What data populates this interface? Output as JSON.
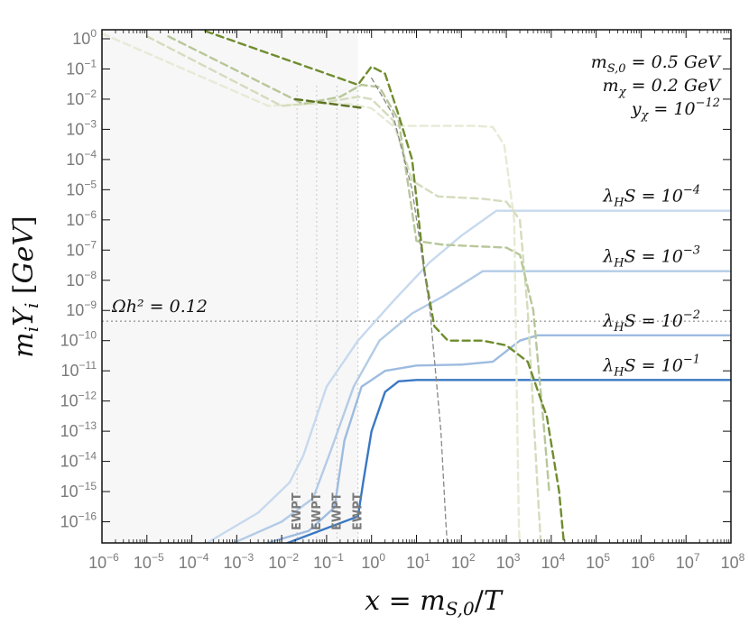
{
  "chart_data": {
    "type": "line",
    "title": "",
    "xlabel": "x = m_{S,0}/T",
    "ylabel": "m_i Y_i  [GeV]",
    "xscale": "log",
    "yscale": "log",
    "xlim": [
      1e-06,
      100000000.0
    ],
    "ylim": [
      1e-17,
      1
    ],
    "grid": false,
    "shaded_region_x": [
      1e-06,
      0.5
    ],
    "x_tick_labels": [
      "10^-6",
      "10^-5",
      "10^-4",
      "10^-3",
      "10^-2",
      "10^-1",
      "10^0",
      "10^1",
      "10^2",
      "10^3",
      "10^4",
      "10^5",
      "10^6",
      "10^7",
      "10^8"
    ],
    "y_tick_labels": [
      "10^0",
      "10^-1",
      "10^-2",
      "10^-3",
      "10^-4",
      "10^-5",
      "10^-6",
      "10^-7",
      "10^-8",
      "10^-9",
      "10^-10",
      "10^-11",
      "10^-12",
      "10^-13",
      "10^-14",
      "10^-15",
      "10^-16",
      "10^-17"
    ],
    "colors": {
      "blue_dark": "#3a78c2",
      "green_dark": "#6f8c2e",
      "grey_ref": "#888888"
    },
    "parameters": [
      {
        "lhs": "m_{S,0}",
        "rhs": "0.5 GeV"
      },
      {
        "lhs": "m_χ",
        "rhs": "0.2 GeV"
      },
      {
        "lhs": "y_χ",
        "rhs": "10^-12"
      }
    ],
    "relic_line": {
      "label": "Ωh² = 0.12",
      "y": 4.4e-10
    },
    "ewpt_markers": [
      {
        "label": "EWPT",
        "x": 0.022
      },
      {
        "label": "EWPT",
        "x": 0.06
      },
      {
        "label": "EWPT",
        "x": 0.17
      },
      {
        "label": "EWPT",
        "x": 0.5
      }
    ],
    "series_labels": [
      {
        "label": "λ_HS = 10^-4",
        "y": 2e-06
      },
      {
        "label": "λ_HS = 10^-3",
        "y": 2e-08
      },
      {
        "label": "λ_HS = 10^-2",
        "y": 1.5e-10
      },
      {
        "label": "λ_HS = 10^-1",
        "y": 5e-12
      }
    ],
    "series": [
      {
        "name": "λ_HS = 10^-4",
        "kind": "dark matter",
        "style": "solid",
        "color": "#c7d9ee",
        "points": [
          [
            0.0001,
            1e-17
          ],
          [
            0.003,
            2e-16
          ],
          [
            0.015,
            2e-15
          ],
          [
            0.03,
            1.5e-14
          ],
          [
            0.1,
            3e-12
          ],
          [
            0.5,
            1e-10
          ],
          [
            3,
            2e-09
          ],
          [
            20,
            4e-08
          ],
          [
            100,
            3e-07
          ],
          [
            600,
            2e-06
          ],
          [
            2000,
            2e-06
          ],
          [
            100000000.0,
            2e-06
          ]
        ]
      },
      {
        "name": "λ_HS = 10^-3",
        "kind": "dark matter",
        "style": "solid",
        "color": "#b3cbe6",
        "points": [
          [
            0.0003,
            1e-17
          ],
          [
            0.01,
            1e-16
          ],
          [
            0.05,
            6e-16
          ],
          [
            0.12,
            2e-14
          ],
          [
            0.4,
            3e-12
          ],
          [
            1.5,
            1e-10
          ],
          [
            8,
            8e-10
          ],
          [
            40,
            3e-09
          ],
          [
            300,
            2e-08
          ],
          [
            1000,
            2e-08
          ],
          [
            100000000.0,
            2e-08
          ]
        ]
      },
      {
        "name": "λ_HS = 10^-2",
        "kind": "dark matter",
        "style": "solid",
        "color": "#9dbbe0",
        "points": [
          [
            0.001,
            1e-17
          ],
          [
            0.04,
            5e-17
          ],
          [
            0.15,
            3e-16
          ],
          [
            0.25,
            5e-14
          ],
          [
            0.6,
            3e-12
          ],
          [
            2,
            1e-11
          ],
          [
            10,
            1.5e-11
          ],
          [
            100,
            1.6e-11
          ],
          [
            500,
            2e-11
          ],
          [
            2000,
            1e-10
          ],
          [
            5000,
            1.5e-10
          ],
          [
            100000000.0,
            1.5e-10
          ]
        ]
      },
      {
        "name": "λ_HS = 10^-1",
        "kind": "dark matter",
        "style": "solid",
        "color": "#3a78c2",
        "points": [
          [
            0.004,
            1e-17
          ],
          [
            0.5,
            1.5e-16
          ],
          [
            0.65,
            2e-15
          ],
          [
            1,
            1e-13
          ],
          [
            2,
            2e-12
          ],
          [
            4,
            4.5e-12
          ],
          [
            10,
            5e-12
          ],
          [
            100000000.0,
            5e-12
          ]
        ]
      },
      {
        "name": "λ_HS = 10^-4",
        "kind": "scalar",
        "style": "dashed",
        "color": "#e6ead6",
        "points": [
          [
            1e-06,
            1.5
          ],
          [
            0.005,
            0.006
          ],
          [
            0.05,
            0.007
          ],
          [
            0.3,
            0.007
          ],
          [
            1,
            0.005
          ],
          [
            3,
            0.0013
          ],
          [
            10,
            0.0013
          ],
          [
            200,
            0.0013
          ],
          [
            500,
            0.0012
          ],
          [
            900,
            0.0003
          ],
          [
            1500,
            1e-06
          ],
          [
            1900,
            1e-16
          ],
          [
            2000,
            1e-17
          ]
        ]
      },
      {
        "name": "λ_HS = 10^-3",
        "kind": "scalar",
        "style": "dashed",
        "color": "#d4dcbd",
        "points": [
          [
            1e-05,
            1.2
          ],
          [
            0.01,
            0.006
          ],
          [
            0.1,
            0.008
          ],
          [
            0.5,
            0.012
          ],
          [
            1,
            0.01
          ],
          [
            3,
            0.002
          ],
          [
            8,
            2e-05
          ],
          [
            30,
            6e-06
          ],
          [
            300,
            5e-06
          ],
          [
            1000,
            4e-06
          ],
          [
            2000,
            1e-06
          ],
          [
            3000,
            1e-09
          ],
          [
            5000,
            1e-15
          ],
          [
            6000,
            1e-17
          ]
        ]
      },
      {
        "name": "λ_HS = 10^-2",
        "kind": "scalar",
        "style": "dashed",
        "color": "#b8c79a",
        "points": [
          [
            3e-05,
            1.2
          ],
          [
            0.03,
            0.007
          ],
          [
            0.2,
            0.012
          ],
          [
            0.6,
            0.03
          ],
          [
            1.5,
            0.025
          ],
          [
            4,
            0.002
          ],
          [
            10,
            2e-07
          ],
          [
            40,
            1.5e-07
          ],
          [
            1000,
            1.2e-07
          ],
          [
            2000,
            7e-08
          ],
          [
            4000,
            1e-09
          ],
          [
            7000,
            1e-13
          ],
          [
            9000,
            1e-15
          ]
        ]
      },
      {
        "name": "λ_HS = 10^-1",
        "kind": "scalar",
        "style": "dashed",
        "color": "#6f8c2e",
        "points": [
          [
            0.0002,
            1.8
          ],
          [
            0.5,
            0.03
          ],
          [
            1,
            0.12
          ],
          [
            2,
            0.07
          ],
          [
            4,
            0.003
          ],
          [
            8,
            0.0001
          ],
          [
            15,
            2e-08
          ],
          [
            25,
            3e-10
          ],
          [
            50,
            1e-10
          ],
          [
            300,
            1e-10
          ],
          [
            1000,
            7e-11
          ],
          [
            3000,
            2e-11
          ],
          [
            8000,
            3e-13
          ],
          [
            15000,
            1e-15
          ],
          [
            20000,
            1e-17
          ]
        ]
      },
      {
        "name": "",
        "kind": "connector",
        "style": "dashed",
        "color": "#5b7222",
        "points": [
          [
            0.02,
            0.01
          ],
          [
            0.7,
            0.005
          ]
        ]
      },
      {
        "name": "",
        "kind": "equilibrium",
        "style": "dashed",
        "color": "#888888",
        "points": [
          [
            1,
            0.05
          ],
          [
            3,
            0.003
          ],
          [
            8,
            1e-05
          ],
          [
            20,
            1e-09
          ],
          [
            35,
            1e-13
          ],
          [
            45,
            1e-16
          ],
          [
            50,
            1e-17
          ]
        ]
      }
    ]
  }
}
